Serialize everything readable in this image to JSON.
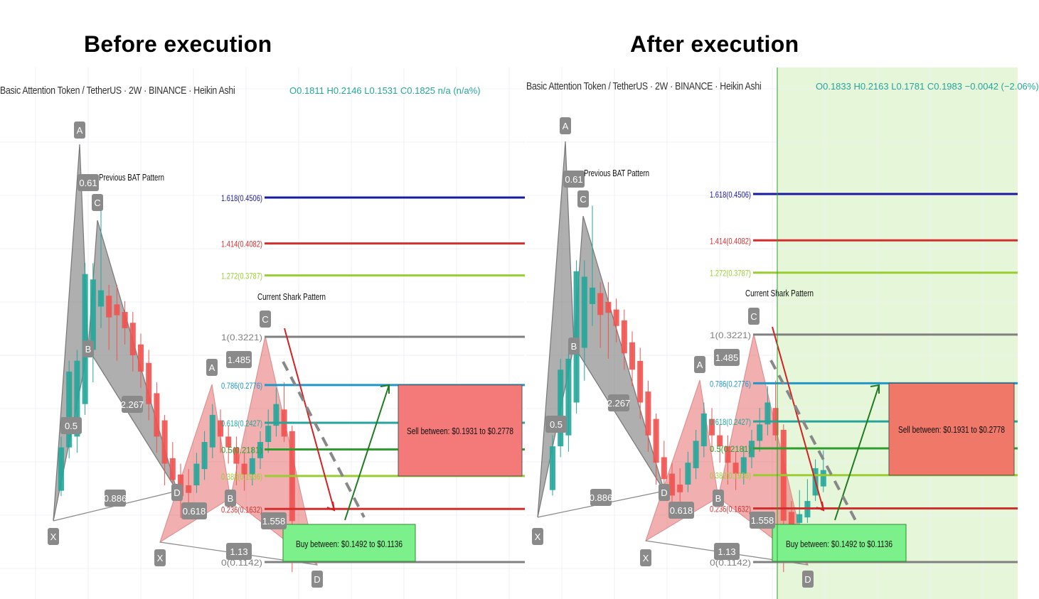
{
  "headings": {
    "before": "Before execution",
    "after": "After execution"
  },
  "panels": [
    {
      "id": "before",
      "symbol": "Basic Attention Token / TetherUS · 2W · BINANCE · Heikin Ashi",
      "ohlc": "O0.1811 H0.2146 L0.1531 C0.1825 n/a (n/a%)"
    },
    {
      "id": "after",
      "symbol": "Basic Attention Token / TetherUS · 2W · BINANCE · Heikin Ashi",
      "ohlc": "O0.1833 H0.2163 L0.1781 C0.1983 −0.0042 (−2.06%)"
    }
  ],
  "chart_data": {
    "type": "candlestick",
    "fib_levels": [
      {
        "label": "1.618(0.4506)",
        "value": 0.4506,
        "color": "#1a1aa0"
      },
      {
        "label": "1.414(0.4082)",
        "value": 0.4082,
        "color": "#d32f2f"
      },
      {
        "label": "1.272(0.3787)",
        "value": 0.3787,
        "color": "#9acd32"
      },
      {
        "label": "1(0.3221)",
        "value": 0.3221,
        "color": "#808080"
      },
      {
        "label": "0.786(0.2776)",
        "value": 0.2776,
        "color": "#2196c8"
      },
      {
        "label": "0.618(0.2427)",
        "value": 0.2427,
        "color": "#26a69a"
      },
      {
        "label": "0.5(0.2181)",
        "value": 0.2181,
        "color": "#2e9e2e"
      },
      {
        "label": "0.382(0.1936)",
        "value": 0.1936,
        "color": "#9acd32"
      },
      {
        "label": "0.236(0.1632)",
        "value": 0.1632,
        "color": "#d32f2f"
      },
      {
        "label": "0(0.1142)",
        "value": 0.1142,
        "color": "#808080"
      }
    ],
    "annotations": {
      "previous_pattern": "Previous BAT Pattern",
      "current_pattern": "Current Shark Pattern",
      "sell_box": "Sell between: $0.1931 to $0.2778",
      "buy_box": "Buy between: $0.1492 to $0.1136"
    },
    "bat_points": [
      "X",
      "A",
      "B",
      "C",
      "D"
    ],
    "bat_ratios": [
      "0.61",
      "0.5",
      "2.267",
      "0.886"
    ],
    "shark_points": [
      "X",
      "A",
      "B",
      "C",
      "D"
    ],
    "shark_ratios": [
      "1.485",
      "0.618",
      "1.558",
      "1.13"
    ],
    "candles_before": [
      {
        "o": 0.18,
        "c": 0.22,
        "h": 0.23,
        "l": 0.175
      },
      {
        "o": 0.22,
        "c": 0.29,
        "h": 0.3,
        "l": 0.21
      },
      {
        "o": 0.23,
        "c": 0.3,
        "h": 0.31,
        "l": 0.215
      },
      {
        "o": 0.26,
        "c": 0.38,
        "h": 0.39,
        "l": 0.25
      },
      {
        "o": 0.31,
        "c": 0.375,
        "h": 0.39,
        "l": 0.28
      },
      {
        "o": 0.35,
        "c": 0.365,
        "h": 0.44,
        "l": 0.33
      },
      {
        "o": 0.36,
        "c": 0.34,
        "h": 0.37,
        "l": 0.31
      },
      {
        "o": 0.352,
        "c": 0.342,
        "h": 0.37,
        "l": 0.3
      },
      {
        "o": 0.345,
        "c": 0.33,
        "h": 0.355,
        "l": 0.315
      },
      {
        "o": 0.335,
        "c": 0.305,
        "h": 0.345,
        "l": 0.29
      },
      {
        "o": 0.315,
        "c": 0.29,
        "h": 0.325,
        "l": 0.275
      },
      {
        "o": 0.298,
        "c": 0.26,
        "h": 0.31,
        "l": 0.245
      },
      {
        "o": 0.27,
        "c": 0.23,
        "h": 0.28,
        "l": 0.215
      },
      {
        "o": 0.245,
        "c": 0.205,
        "h": 0.25,
        "l": 0.185
      },
      {
        "o": 0.21,
        "c": 0.19,
        "h": 0.225,
        "l": 0.18
      },
      {
        "o": 0.195,
        "c": 0.175,
        "h": 0.205,
        "l": 0.155
      },
      {
        "o": 0.185,
        "c": 0.178,
        "h": 0.2,
        "l": 0.162
      },
      {
        "o": 0.185,
        "c": 0.205,
        "h": 0.215,
        "l": 0.178
      },
      {
        "o": 0.2,
        "c": 0.225,
        "h": 0.235,
        "l": 0.19
      },
      {
        "o": 0.22,
        "c": 0.25,
        "h": 0.26,
        "l": 0.21
      },
      {
        "o": 0.245,
        "c": 0.23,
        "h": 0.255,
        "l": 0.215
      },
      {
        "o": 0.23,
        "c": 0.22,
        "h": 0.24,
        "l": 0.205
      },
      {
        "o": 0.22,
        "c": 0.205,
        "h": 0.23,
        "l": 0.185
      },
      {
        "o": 0.205,
        "c": 0.195,
        "h": 0.215,
        "l": 0.18
      },
      {
        "o": 0.195,
        "c": 0.21,
        "h": 0.22,
        "l": 0.185
      },
      {
        "o": 0.21,
        "c": 0.225,
        "h": 0.235,
        "l": 0.2
      },
      {
        "o": 0.225,
        "c": 0.24,
        "h": 0.255,
        "l": 0.215
      },
      {
        "o": 0.24,
        "c": 0.26,
        "h": 0.275,
        "l": 0.23
      },
      {
        "o": 0.255,
        "c": 0.23,
        "h": 0.28,
        "l": 0.225
      },
      {
        "o": 0.235,
        "c": 0.152,
        "h": 0.24,
        "l": 0.105
      }
    ],
    "candles_after_extra": [
      {
        "o": 0.16,
        "c": 0.145,
        "h": 0.17,
        "l": 0.125
      },
      {
        "o": 0.15,
        "c": 0.158,
        "h": 0.18,
        "l": 0.145
      },
      {
        "o": 0.155,
        "c": 0.17,
        "h": 0.19,
        "l": 0.15
      },
      {
        "o": 0.175,
        "c": 0.2,
        "h": 0.208,
        "l": 0.17
      },
      {
        "o": 0.1833,
        "c": 0.1983,
        "h": 0.2163,
        "l": 0.1781
      }
    ]
  }
}
